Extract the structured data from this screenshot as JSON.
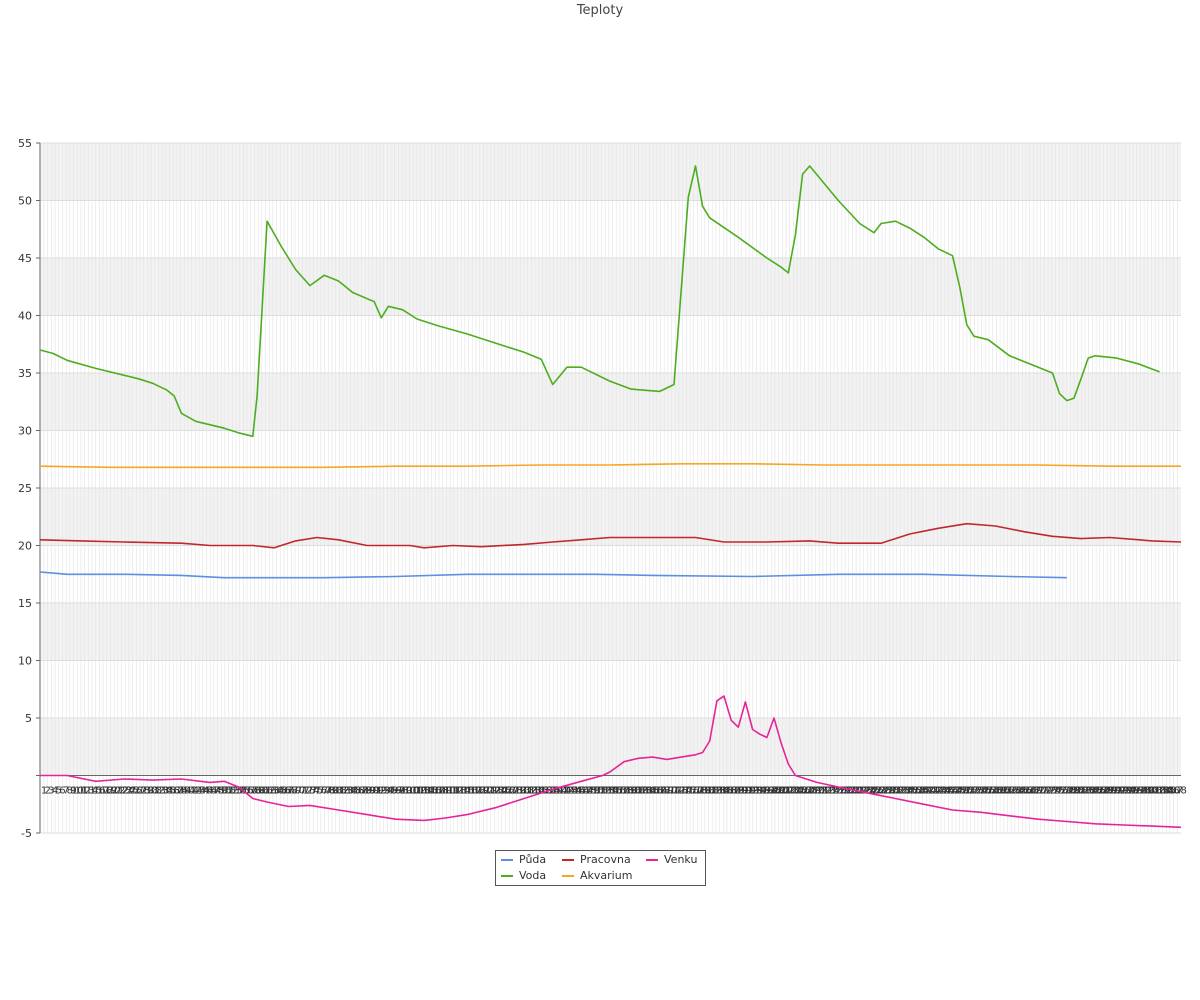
{
  "chart_data": {
    "type": "line",
    "title": "Teploty",
    "xlabel": "",
    "ylabel": "",
    "ylim": [
      -5,
      55
    ],
    "yticks": [
      -5,
      5,
      10,
      15,
      20,
      25,
      30,
      35,
      40,
      45,
      50,
      55
    ],
    "grid": true,
    "legend_position": "bottom-center",
    "x": "1..308",
    "series": [
      {
        "name": "Půda",
        "color": "#5b8fe0",
        "points": [
          [
            1,
            17.7
          ],
          [
            10,
            17.6
          ],
          [
            20,
            17.5
          ],
          [
            60,
            17.5
          ],
          [
            100,
            17.4
          ],
          [
            130,
            17.2
          ],
          [
            200,
            17.2
          ],
          [
            250,
            17.3
          ],
          [
            300,
            17.5
          ],
          [
            360,
            17.5
          ],
          [
            390,
            17.5
          ],
          [
            430,
            17.4
          ],
          [
            500,
            17.3
          ],
          [
            560,
            17.5
          ],
          [
            620,
            17.5
          ],
          [
            680,
            17.3
          ],
          [
            720,
            17.2
          ]
        ]
      },
      {
        "name": "Voda",
        "color": "#4cae1f",
        "points": [
          [
            1,
            37.0
          ],
          [
            10,
            36.7
          ],
          [
            20,
            36.1
          ],
          [
            40,
            35.4
          ],
          [
            60,
            34.8
          ],
          [
            70,
            34.5
          ],
          [
            80,
            34.1
          ],
          [
            90,
            33.5
          ],
          [
            95,
            33.0
          ],
          [
            100,
            31.5
          ],
          [
            110,
            30.8
          ],
          [
            130,
            30.2
          ],
          [
            140,
            29.8
          ],
          [
            150,
            29.5
          ],
          [
            153,
            33.0
          ],
          [
            160,
            48.2
          ],
          [
            170,
            46.0
          ],
          [
            180,
            44.0
          ],
          [
            190,
            42.6
          ],
          [
            200,
            43.5
          ],
          [
            210,
            43.0
          ],
          [
            220,
            42.0
          ],
          [
            235,
            41.2
          ],
          [
            240,
            39.8
          ],
          [
            245,
            40.8
          ],
          [
            255,
            40.5
          ],
          [
            265,
            39.7
          ],
          [
            280,
            39.1
          ],
          [
            300,
            38.4
          ],
          [
            320,
            37.6
          ],
          [
            340,
            36.8
          ],
          [
            352,
            36.2
          ],
          [
            360,
            34.0
          ],
          [
            370,
            35.5
          ],
          [
            380,
            35.5
          ],
          [
            400,
            34.3
          ],
          [
            415,
            33.6
          ],
          [
            435,
            33.4
          ],
          [
            445,
            34.0
          ],
          [
            455,
            50.3
          ],
          [
            460,
            53.0
          ],
          [
            465,
            49.5
          ],
          [
            470,
            48.5
          ],
          [
            490,
            46.8
          ],
          [
            510,
            45.0
          ],
          [
            520,
            44.2
          ],
          [
            525,
            43.7
          ],
          [
            530,
            47.0
          ],
          [
            535,
            52.3
          ],
          [
            540,
            53.0
          ],
          [
            550,
            51.5
          ],
          [
            560,
            50.0
          ],
          [
            575,
            48.0
          ],
          [
            585,
            47.2
          ],
          [
            590,
            48.0
          ],
          [
            600,
            48.2
          ],
          [
            610,
            47.6
          ],
          [
            620,
            46.8
          ],
          [
            630,
            45.8
          ],
          [
            640,
            45.2
          ],
          [
            645,
            42.5
          ],
          [
            650,
            39.2
          ],
          [
            655,
            38.2
          ],
          [
            665,
            37.9
          ],
          [
            680,
            36.5
          ],
          [
            700,
            35.5
          ],
          [
            710,
            35.0
          ],
          [
            715,
            33.2
          ],
          [
            720,
            32.6
          ],
          [
            725,
            32.8
          ],
          [
            730,
            34.5
          ],
          [
            735,
            36.3
          ],
          [
            740,
            36.5
          ],
          [
            755,
            36.3
          ],
          [
            770,
            35.8
          ],
          [
            785,
            35.1
          ]
        ]
      },
      {
        "name": "Pracovna",
        "color": "#c0282d",
        "points": [
          [
            1,
            20.5
          ],
          [
            30,
            20.4
          ],
          [
            60,
            20.3
          ],
          [
            100,
            20.2
          ],
          [
            120,
            20.0
          ],
          [
            150,
            20.0
          ],
          [
            165,
            19.8
          ],
          [
            180,
            20.4
          ],
          [
            195,
            20.7
          ],
          [
            210,
            20.5
          ],
          [
            230,
            20.0
          ],
          [
            260,
            20.0
          ],
          [
            270,
            19.8
          ],
          [
            290,
            20.0
          ],
          [
            310,
            19.9
          ],
          [
            340,
            20.1
          ],
          [
            360,
            20.3
          ],
          [
            380,
            20.5
          ],
          [
            400,
            20.7
          ],
          [
            430,
            20.7
          ],
          [
            460,
            20.7
          ],
          [
            480,
            20.3
          ],
          [
            510,
            20.3
          ],
          [
            540,
            20.4
          ],
          [
            560,
            20.2
          ],
          [
            590,
            20.2
          ],
          [
            610,
            21.0
          ],
          [
            630,
            21.5
          ],
          [
            650,
            21.9
          ],
          [
            670,
            21.7
          ],
          [
            690,
            21.2
          ],
          [
            710,
            20.8
          ],
          [
            730,
            20.6
          ],
          [
            750,
            20.7
          ],
          [
            780,
            20.4
          ],
          [
            800,
            20.3
          ]
        ]
      },
      {
        "name": "Akvarium",
        "color": "#f5a623",
        "points": [
          [
            1,
            26.9
          ],
          [
            50,
            26.8
          ],
          [
            100,
            26.8
          ],
          [
            150,
            26.8
          ],
          [
            200,
            26.8
          ],
          [
            250,
            26.9
          ],
          [
            300,
            26.9
          ],
          [
            350,
            27.0
          ],
          [
            400,
            27.0
          ],
          [
            450,
            27.1
          ],
          [
            500,
            27.1
          ],
          [
            550,
            27.0
          ],
          [
            600,
            27.0
          ],
          [
            650,
            27.0
          ],
          [
            700,
            27.0
          ],
          [
            750,
            26.9
          ],
          [
            800,
            26.9
          ]
        ]
      },
      {
        "name": "Venku",
        "color": "#e8239a",
        "points": [
          [
            1,
            0.0
          ],
          [
            20,
            0.0
          ],
          [
            40,
            -0.5
          ],
          [
            60,
            -0.3
          ],
          [
            80,
            -0.4
          ],
          [
            100,
            -0.3
          ],
          [
            120,
            -0.6
          ],
          [
            130,
            -0.5
          ],
          [
            140,
            -1.0
          ],
          [
            150,
            -2.0
          ],
          [
            160,
            -2.3
          ],
          [
            175,
            -2.7
          ],
          [
            190,
            -2.6
          ],
          [
            210,
            -3.0
          ],
          [
            230,
            -3.4
          ],
          [
            250,
            -3.8
          ],
          [
            270,
            -3.9
          ],
          [
            285,
            -3.7
          ],
          [
            300,
            -3.4
          ],
          [
            320,
            -2.8
          ],
          [
            340,
            -2.0
          ],
          [
            360,
            -1.2
          ],
          [
            380,
            -0.5
          ],
          [
            395,
            0.0
          ],
          [
            400,
            0.3
          ],
          [
            410,
            1.2
          ],
          [
            420,
            1.5
          ],
          [
            430,
            1.6
          ],
          [
            440,
            1.4
          ],
          [
            450,
            1.6
          ],
          [
            460,
            1.8
          ],
          [
            465,
            2.0
          ],
          [
            470,
            3.0
          ],
          [
            475,
            6.5
          ],
          [
            480,
            6.9
          ],
          [
            485,
            4.8
          ],
          [
            490,
            4.2
          ],
          [
            495,
            6.4
          ],
          [
            500,
            4.0
          ],
          [
            505,
            3.6
          ],
          [
            510,
            3.3
          ],
          [
            515,
            5.0
          ],
          [
            520,
            2.8
          ],
          [
            525,
            1.0
          ],
          [
            530,
            0.0
          ],
          [
            545,
            -0.6
          ],
          [
            560,
            -1.0
          ],
          [
            580,
            -1.5
          ],
          [
            600,
            -2.0
          ],
          [
            620,
            -2.5
          ],
          [
            640,
            -3.0
          ],
          [
            660,
            -3.2
          ],
          [
            680,
            -3.5
          ],
          [
            700,
            -3.8
          ],
          [
            720,
            -4.0
          ],
          [
            740,
            -4.2
          ],
          [
            760,
            -4.3
          ],
          [
            780,
            -4.4
          ],
          [
            800,
            -4.5
          ]
        ]
      }
    ]
  },
  "legend": {
    "items": [
      "Půda",
      "Pracovna",
      "Venku",
      "Voda",
      "Akvarium"
    ]
  }
}
